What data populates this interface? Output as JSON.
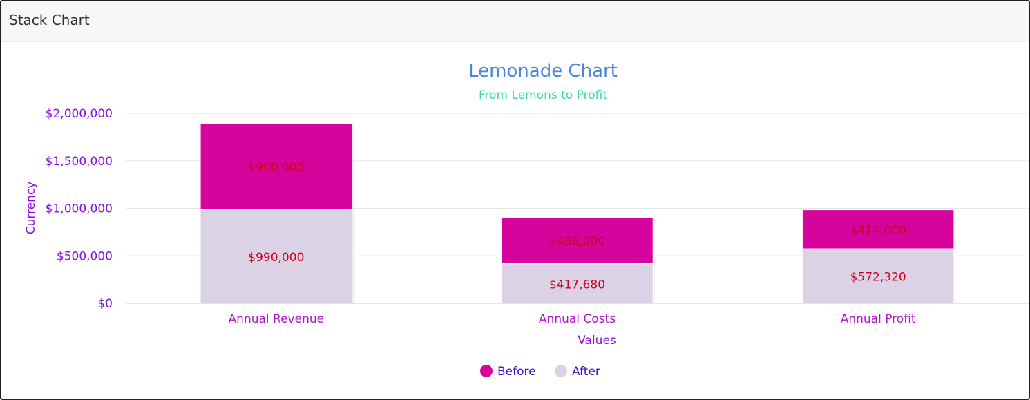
{
  "card": {
    "title": "Stack Chart"
  },
  "chart_data": {
    "type": "bar",
    "stacked": true,
    "title": "Lemonade Chart",
    "subtitle": "From Lemons to Profit",
    "xlabel": "Values",
    "ylabel": "Currency",
    "categories": [
      "Annual Revenue",
      "Annual Costs",
      "Annual Profit"
    ],
    "series": [
      {
        "name": "After",
        "values": [
          990000,
          417680,
          572320
        ],
        "labels": [
          "$990,000",
          "$417,680",
          "$572,320"
        ],
        "color": "#dcd2e6"
      },
      {
        "name": "Before",
        "values": [
          900000,
          486000,
          414000
        ],
        "labels": [
          "$900,000",
          "$486,000",
          "$414,000"
        ],
        "color": "#d4049c"
      }
    ],
    "legend_order": [
      "Before",
      "After"
    ],
    "ylim": [
      0,
      2000000
    ],
    "yticks": [
      {
        "value": 0,
        "label": "$0"
      },
      {
        "value": 500000,
        "label": "$500,000"
      },
      {
        "value": 1000000,
        "label": "$1,000,000"
      },
      {
        "value": 1500000,
        "label": "$1,500,000"
      },
      {
        "value": 2000000,
        "label": "$2,000,000"
      }
    ],
    "grid": true,
    "legend_position": "bottom",
    "colors": {
      "title": "#4a86d8",
      "subtitle": "#3fd6b2",
      "axis_text": "#8a0fe0",
      "category_text": "#b015c8",
      "data_label": "#d0021b",
      "legend_text": "#3a0fd0",
      "grid": "#e6e6e6"
    }
  }
}
